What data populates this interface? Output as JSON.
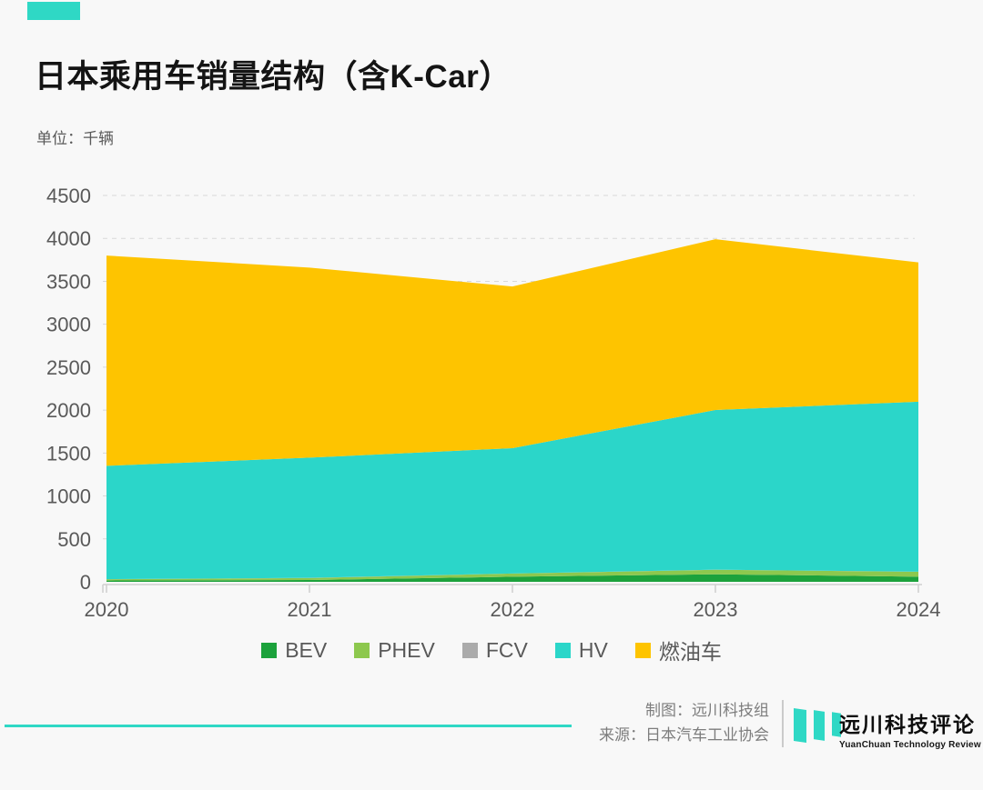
{
  "page": {
    "background": "#F8F8F8",
    "accent_color": "#2FD8C5"
  },
  "header": {
    "title": "日本乘用车销量结构（含K-Car）",
    "unit_label": "单位：千辆"
  },
  "chart_data": {
    "type": "area",
    "stacked": true,
    "title": "日本乘用车销量结构（含K-Car）",
    "xlabel": "",
    "ylabel": "千辆",
    "x": [
      "2020",
      "2021",
      "2022",
      "2023",
      "2024"
    ],
    "series": [
      {
        "name": "BEV",
        "color": "#1CA23C",
        "values": [
          15,
          21,
          59,
          88,
          60
        ]
      },
      {
        "name": "PHEV",
        "color": "#8DC84E",
        "values": [
          15,
          23,
          37,
          52,
          57
        ]
      },
      {
        "name": "FCV",
        "color": "#ABABAB",
        "values": [
          1,
          2,
          1,
          1,
          1
        ]
      },
      {
        "name": "HV",
        "color": "#2BD6C9",
        "values": [
          1320,
          1400,
          1460,
          1860,
          1980
        ]
      },
      {
        "name": "燃油车",
        "color": "#FEC400",
        "values": [
          2449,
          2214,
          1883,
          1989,
          1622
        ]
      }
    ],
    "totals": [
      3800,
      3660,
      3440,
      3990,
      3720
    ],
    "ylim": [
      0,
      4500
    ],
    "y_ticks": [
      0,
      500,
      1000,
      1500,
      2000,
      2500,
      3000,
      3500,
      4000,
      4500
    ],
    "grid": "dashed-horizontal",
    "legend_position": "bottom"
  },
  "footer": {
    "credit_line1": "制图：远川科技组",
    "credit_line2": "来源：日本汽车工业协会",
    "logo_title": "远川科技评论",
    "logo_subtitle": "YuanChuan Technology Review"
  }
}
